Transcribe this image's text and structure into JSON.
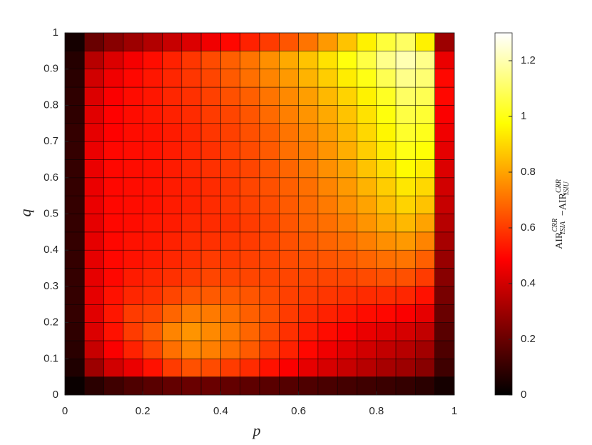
{
  "chart_data": {
    "type": "heatmap",
    "xlabel": "p",
    "ylabel": "q",
    "xlim": [
      0,
      1
    ],
    "ylim": [
      0,
      1
    ],
    "xticks": [
      0,
      0.2,
      0.4,
      0.6,
      0.8,
      1
    ],
    "yticks": [
      0,
      0.1,
      0.2,
      0.3,
      0.4,
      0.5,
      0.6,
      0.7,
      0.8,
      0.9,
      1
    ],
    "colormap": "hot",
    "clim": [
      0,
      1.3
    ],
    "cticks": [
      0,
      0.2,
      0.4,
      0.6,
      0.8,
      1,
      1.2
    ],
    "colorbar_label": {
      "terms": [
        {
          "base": "AIR",
          "sup": "CRR",
          "sub": "ISIA"
        },
        {
          "base": "AIR",
          "sup": "CRR",
          "sub": "ISIU"
        }
      ],
      "operator": "−"
    },
    "x": [
      0.025,
      0.075,
      0.125,
      0.175,
      0.225,
      0.275,
      0.325,
      0.375,
      0.425,
      0.475,
      0.525,
      0.575,
      0.625,
      0.675,
      0.725,
      0.775,
      0.825,
      0.875,
      0.925,
      0.975
    ],
    "y": [
      0.025,
      0.075,
      0.125,
      0.175,
      0.225,
      0.275,
      0.325,
      0.375,
      0.425,
      0.475,
      0.525,
      0.575,
      0.625,
      0.675,
      0.725,
      0.775,
      0.825,
      0.875,
      0.925,
      0.975
    ],
    "z": [
      [
        0.02,
        0.08,
        0.12,
        0.15,
        0.17,
        0.19,
        0.2,
        0.2,
        0.19,
        0.18,
        0.17,
        0.16,
        0.15,
        0.14,
        0.13,
        0.12,
        0.11,
        0.1,
        0.08,
        0.04
      ],
      [
        0.06,
        0.3,
        0.4,
        0.45,
        0.52,
        0.6,
        0.64,
        0.63,
        0.6,
        0.57,
        0.52,
        0.48,
        0.44,
        0.41,
        0.38,
        0.35,
        0.32,
        0.3,
        0.26,
        0.12
      ],
      [
        0.08,
        0.38,
        0.48,
        0.55,
        0.62,
        0.7,
        0.74,
        0.73,
        0.7,
        0.66,
        0.6,
        0.55,
        0.5,
        0.46,
        0.43,
        0.4,
        0.37,
        0.35,
        0.31,
        0.15
      ],
      [
        0.09,
        0.42,
        0.52,
        0.6,
        0.66,
        0.74,
        0.77,
        0.75,
        0.72,
        0.68,
        0.63,
        0.58,
        0.54,
        0.51,
        0.48,
        0.45,
        0.43,
        0.41,
        0.37,
        0.17
      ],
      [
        0.1,
        0.43,
        0.53,
        0.6,
        0.62,
        0.68,
        0.72,
        0.72,
        0.7,
        0.67,
        0.64,
        0.6,
        0.57,
        0.55,
        0.53,
        0.51,
        0.5,
        0.48,
        0.44,
        0.2
      ],
      [
        0.1,
        0.44,
        0.52,
        0.56,
        0.58,
        0.62,
        0.65,
        0.66,
        0.66,
        0.65,
        0.63,
        0.61,
        0.6,
        0.59,
        0.58,
        0.57,
        0.57,
        0.56,
        0.52,
        0.23
      ],
      [
        0.1,
        0.44,
        0.5,
        0.54,
        0.56,
        0.58,
        0.6,
        0.62,
        0.62,
        0.62,
        0.62,
        0.62,
        0.62,
        0.62,
        0.62,
        0.63,
        0.64,
        0.64,
        0.6,
        0.26
      ],
      [
        0.1,
        0.44,
        0.5,
        0.52,
        0.54,
        0.56,
        0.58,
        0.6,
        0.6,
        0.61,
        0.62,
        0.63,
        0.64,
        0.65,
        0.66,
        0.68,
        0.7,
        0.71,
        0.67,
        0.29
      ],
      [
        0.1,
        0.44,
        0.5,
        0.52,
        0.53,
        0.55,
        0.57,
        0.58,
        0.59,
        0.6,
        0.62,
        0.64,
        0.66,
        0.68,
        0.7,
        0.73,
        0.76,
        0.78,
        0.74,
        0.32
      ],
      [
        0.1,
        0.44,
        0.5,
        0.51,
        0.53,
        0.54,
        0.56,
        0.57,
        0.58,
        0.6,
        0.62,
        0.65,
        0.68,
        0.7,
        0.73,
        0.77,
        0.81,
        0.84,
        0.8,
        0.35
      ],
      [
        0.1,
        0.45,
        0.5,
        0.51,
        0.52,
        0.54,
        0.55,
        0.57,
        0.59,
        0.61,
        0.63,
        0.66,
        0.69,
        0.72,
        0.76,
        0.8,
        0.85,
        0.89,
        0.86,
        0.38
      ],
      [
        0.1,
        0.45,
        0.5,
        0.51,
        0.52,
        0.54,
        0.55,
        0.57,
        0.59,
        0.62,
        0.64,
        0.67,
        0.7,
        0.74,
        0.78,
        0.83,
        0.88,
        0.93,
        0.9,
        0.4
      ],
      [
        0.1,
        0.45,
        0.5,
        0.51,
        0.52,
        0.54,
        0.56,
        0.58,
        0.6,
        0.62,
        0.65,
        0.68,
        0.72,
        0.76,
        0.8,
        0.86,
        0.91,
        0.97,
        0.94,
        0.42
      ],
      [
        0.1,
        0.45,
        0.5,
        0.51,
        0.52,
        0.54,
        0.56,
        0.58,
        0.61,
        0.63,
        0.66,
        0.7,
        0.73,
        0.77,
        0.82,
        0.88,
        0.94,
        1.0,
        0.98,
        0.44
      ],
      [
        0.1,
        0.44,
        0.49,
        0.51,
        0.52,
        0.54,
        0.56,
        0.59,
        0.61,
        0.64,
        0.67,
        0.71,
        0.75,
        0.79,
        0.84,
        0.9,
        0.96,
        1.03,
        1.01,
        0.46
      ],
      [
        0.09,
        0.43,
        0.49,
        0.51,
        0.53,
        0.55,
        0.57,
        0.6,
        0.62,
        0.65,
        0.69,
        0.73,
        0.77,
        0.81,
        0.86,
        0.92,
        0.99,
        1.06,
        1.04,
        0.48
      ],
      [
        0.09,
        0.42,
        0.48,
        0.51,
        0.53,
        0.56,
        0.58,
        0.61,
        0.64,
        0.67,
        0.71,
        0.75,
        0.79,
        0.84,
        0.89,
        0.95,
        1.02,
        1.1,
        1.08,
        0.5
      ],
      [
        0.08,
        0.4,
        0.46,
        0.5,
        0.53,
        0.56,
        0.59,
        0.62,
        0.66,
        0.7,
        0.74,
        0.78,
        0.83,
        0.88,
        0.94,
        1.0,
        1.08,
        1.15,
        1.12,
        0.5
      ],
      [
        0.07,
        0.35,
        0.42,
        0.47,
        0.51,
        0.55,
        0.59,
        0.63,
        0.67,
        0.71,
        0.76,
        0.81,
        0.86,
        0.92,
        0.99,
        1.06,
        1.15,
        1.2,
        1.15,
        0.45
      ],
      [
        0.04,
        0.2,
        0.26,
        0.3,
        0.34,
        0.38,
        0.42,
        0.46,
        0.5,
        0.55,
        0.6,
        0.65,
        0.71,
        0.78,
        0.86,
        0.95,
        1.05,
        1.1,
        0.95,
        0.3
      ]
    ]
  }
}
